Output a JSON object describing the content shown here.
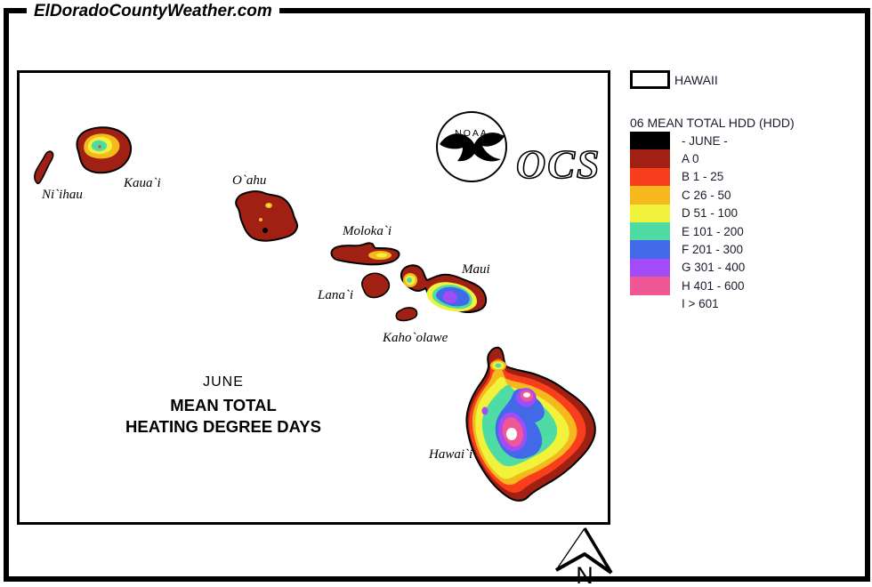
{
  "header": {
    "site": "ElDoradoCountyWeather.com"
  },
  "map": {
    "title_line1": "JUNE",
    "title_line2": "MEAN TOTAL",
    "title_line3": "HEATING DEGREE DAYS",
    "islands": [
      "Ni`ihau",
      "Kaua`i",
      "O`ahu",
      "Moloka`i",
      "Lana`i",
      "Maui",
      "Kaho`olawe",
      "Hawai`i"
    ],
    "noaa_label": "NOAA",
    "ocs_label": "OCS",
    "north_label": "N"
  },
  "legend": {
    "region_label": "HAWAII",
    "title": "06 MEAN TOTAL HDD (HDD)",
    "items": [
      {
        "label": "- JUNE -",
        "color": "#000000"
      },
      {
        "label": "A 0",
        "color": "#A02013"
      },
      {
        "label": "B 1 - 25",
        "color": "#F93E1D"
      },
      {
        "label": "C 26 - 50",
        "color": "#F5B91E"
      },
      {
        "label": "D 51 - 100",
        "color": "#F1F23B"
      },
      {
        "label": "E 101 - 200",
        "color": "#4EDBA4"
      },
      {
        "label": "F 201 - 300",
        "color": "#4169E8"
      },
      {
        "label": "G 301 - 400",
        "color": "#A44BF8"
      },
      {
        "label": "H 401 - 600",
        "color": "#EF5795"
      },
      {
        "label": "I > 601",
        "color": "#FFFFFF"
      }
    ]
  },
  "palette": {
    "A": "#A02013",
    "B": "#F93E1D",
    "C": "#F5B91E",
    "D": "#F1F23B",
    "E": "#4EDBA4",
    "F": "#4169E8",
    "G": "#A44BF8",
    "H": "#EF5795",
    "I": "#FFFFFF",
    "black": "#000000"
  }
}
